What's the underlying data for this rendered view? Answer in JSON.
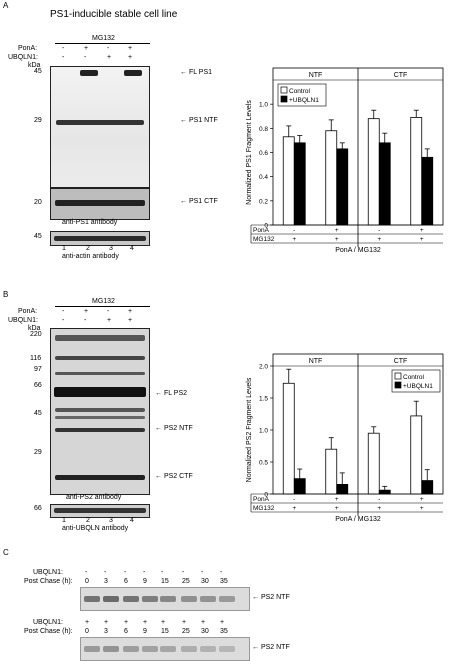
{
  "panel_a": {
    "letter": "A",
    "title": "PS1-inducible stable cell line",
    "treatment_header": "MG132",
    "rows": [
      {
        "label": "PonA:",
        "values": [
          "-",
          "+",
          "-",
          "+"
        ]
      },
      {
        "label": "UBQLN1:",
        "values": [
          "-",
          "-",
          "+",
          "+"
        ]
      }
    ],
    "kda": "kDa",
    "mw_main": [
      "45",
      "29"
    ],
    "mw_ctf": "20",
    "mw_actin": "45",
    "lanes": [
      "1",
      "2",
      "3",
      "4"
    ],
    "band_labels": [
      "FL PS1",
      "PS1 NTF",
      "PS1 CTF"
    ],
    "antibody": "anti-PS1 antibody",
    "actin_antibody": "anti-actin antibody"
  },
  "panel_b": {
    "letter": "B",
    "treatment_header": "MG132",
    "rows": [
      {
        "label": "PonA:",
        "values": [
          "-",
          "+",
          "-",
          "+"
        ]
      },
      {
        "label": "UBQLN1:",
        "values": [
          "-",
          "-",
          "+",
          "+"
        ]
      }
    ],
    "kda": "kDa",
    "mw": [
      "220",
      "116",
      "97",
      "66",
      "45",
      "29"
    ],
    "mw_bottom": "66",
    "lanes": [
      "1",
      "2",
      "3",
      "4"
    ],
    "band_labels": [
      "FL PS2",
      "PS2 NTF",
      "PS2 CTF"
    ],
    "antibody": "anti-PS2 antibody",
    "bottom_antibody": "anti-UBQLN antibody"
  },
  "panel_c": {
    "letter": "C",
    "rows": [
      {
        "ubqln_label": "UBQLN1:",
        "ubqln": [
          "-",
          "-",
          "-",
          "-",
          "-",
          "-",
          "-",
          "-"
        ],
        "chase_label": "Post Chase (h):",
        "times": [
          "0",
          "3",
          "6",
          "9",
          "15",
          "25",
          "30",
          "35"
        ],
        "band": "PS2 NTF"
      },
      {
        "ubqln_label": "UBQLN1:",
        "ubqln": [
          "+",
          "+",
          "+",
          "+",
          "+",
          "+",
          "+",
          "+"
        ],
        "chase_label": "Post Chase (h):",
        "times": [
          "0",
          "3",
          "6",
          "9",
          "15",
          "25",
          "30",
          "35"
        ],
        "band": "PS2 NTF"
      }
    ]
  },
  "chart_data": [
    {
      "type": "bar",
      "groups": [
        "NTF",
        "CTF"
      ],
      "categories": [
        "PonA - / MG132 +",
        "PonA + / MG132 +",
        "PonA - / MG132 +",
        "PonA + / MG132 +"
      ],
      "ylabel": "Normalized PS1 Fragment Levels",
      "xlabel": "PonA / MG132",
      "ylim": [
        0,
        1.2
      ],
      "yticks": [
        "0",
        "0.2",
        "0.4",
        "0.6",
        "0.8",
        "1.0"
      ],
      "ytick_values": [
        0,
        0.2,
        0.4,
        0.6,
        0.8,
        1.0
      ],
      "legend_position": "top-left",
      "condition_rows": [
        {
          "label": "PonA",
          "values": [
            "-",
            "+",
            "-",
            "+"
          ]
        },
        {
          "label": "MG132",
          "values": [
            "+",
            "+",
            "+",
            "+"
          ]
        }
      ],
      "series": [
        {
          "name": "Control",
          "color": "#ffffff",
          "values": [
            0.73,
            0.78,
            0.88,
            0.89
          ],
          "errors": [
            0.09,
            0.09,
            0.07,
            0.06
          ]
        },
        {
          "name": "+UBQLN1",
          "color": "#000000",
          "values": [
            0.68,
            0.63,
            0.68,
            0.56
          ],
          "errors": [
            0.06,
            0.05,
            0.08,
            0.07
          ]
        }
      ]
    },
    {
      "type": "bar",
      "groups": [
        "NTF",
        "CTF"
      ],
      "categories": [
        "PonA - / MG132 +",
        "PonA + / MG132 +",
        "PonA - / MG132 +",
        "PonA + / MG132 +"
      ],
      "ylabel": "Normalized PS2 Fragment Levels",
      "xlabel": "PonA / MG132",
      "ylim": [
        0,
        2.0
      ],
      "yticks": [
        "0",
        "0.5",
        "1.0",
        "1.5",
        "2.0"
      ],
      "ytick_values": [
        0,
        0.5,
        1.0,
        1.5,
        2.0
      ],
      "legend_position": "top-right",
      "condition_rows": [
        {
          "label": "PonA",
          "values": [
            "-",
            "+",
            "-",
            "+"
          ]
        },
        {
          "label": "MG132",
          "values": [
            "+",
            "+",
            "+",
            "+"
          ]
        }
      ],
      "series": [
        {
          "name": "Control",
          "color": "#ffffff",
          "values": [
            1.73,
            0.7,
            0.95,
            1.22
          ],
          "errors": [
            0.22,
            0.18,
            0.1,
            0.23
          ]
        },
        {
          "name": "+UBQLN1",
          "color": "#000000",
          "values": [
            0.24,
            0.15,
            0.06,
            0.21
          ],
          "errors": [
            0.15,
            0.18,
            0.06,
            0.17
          ]
        }
      ]
    }
  ]
}
